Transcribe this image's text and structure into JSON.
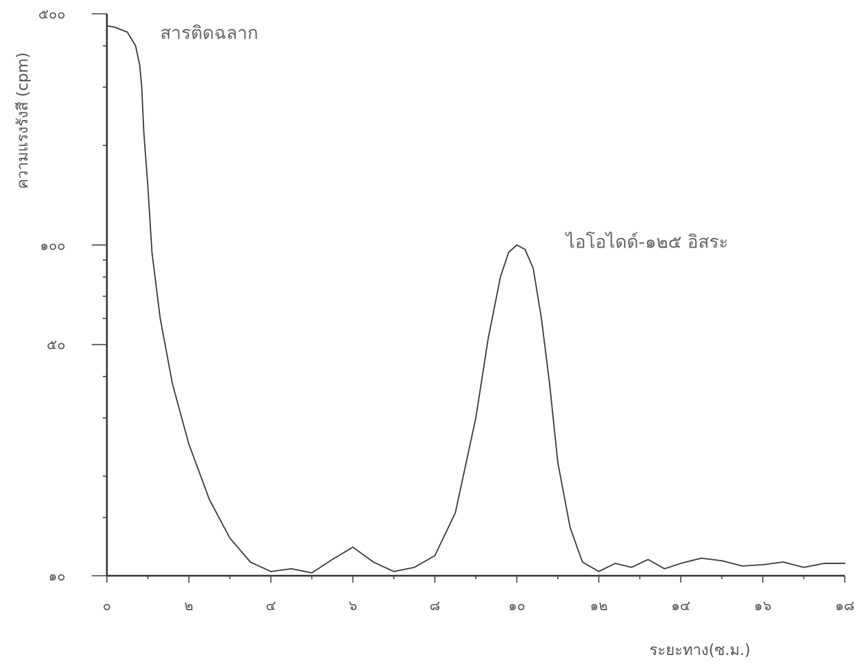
{
  "chart_data": {
    "type": "line",
    "xlabel": "ระยะทาง(ซ.ม.)",
    "ylabel": "ความแรงรังสี (cpm)",
    "xlim": [
      0,
      18
    ],
    "ylim_display_labels": [
      "๑๐",
      "๕๐",
      "๑๐๐",
      "๕๐๐"
    ],
    "x_ticks": [
      {
        "value": 0,
        "label": "๐"
      },
      {
        "value": 2,
        "label": "๒"
      },
      {
        "value": 4,
        "label": "๔"
      },
      {
        "value": 6,
        "label": "๖"
      },
      {
        "value": 8,
        "label": "๘"
      },
      {
        "value": 10,
        "label": "๑๐"
      },
      {
        "value": 12,
        "label": "๑๒"
      },
      {
        "value": 14,
        "label": "๑๔"
      },
      {
        "value": 16,
        "label": "๑๖"
      },
      {
        "value": 18,
        "label": "๑๘"
      }
    ],
    "y_scale": "log",
    "y_ticks": [
      {
        "value": 10,
        "label": "๑๐"
      },
      {
        "value": 50,
        "label": "๕๐"
      },
      {
        "value": 100,
        "label": "๑๐๐"
      },
      {
        "value": 500,
        "label": "๕๐๐"
      }
    ],
    "series": [
      {
        "x": [
          0,
          0.2,
          0.5,
          0.7,
          0.8,
          0.85,
          0.9,
          1.0,
          1.1,
          1.3,
          1.6,
          2.0,
          2.5,
          3.0,
          3.5,
          4.0,
          4.5,
          5.0,
          5.5,
          6.0,
          6.5,
          7.0,
          7.5,
          8.0,
          8.5,
          9.0,
          9.3,
          9.6,
          9.8,
          10.0,
          10.2,
          10.4,
          10.6,
          10.8,
          11.0,
          11.3,
          11.6,
          12.0,
          12.4,
          12.8,
          13.2,
          13.6,
          14.0,
          14.5,
          15.0,
          15.5,
          16.0,
          16.5,
          17.0,
          17.5,
          18.0
        ],
        "y": [
          460,
          455,
          440,
          400,
          350,
          300,
          220,
          150,
          95,
          60,
          38,
          25,
          17,
          13,
          11,
          10.3,
          10.5,
          10.2,
          11.2,
          12.2,
          11.0,
          10.3,
          10.6,
          11.5,
          15.5,
          30,
          52,
          80,
          95,
          100,
          97,
          85,
          60,
          38,
          22,
          14,
          11,
          10.3,
          10.9,
          10.6,
          11.2,
          10.5,
          10.9,
          11.3,
          11.1,
          10.7,
          10.8,
          11.0,
          10.6,
          10.9,
          10.9
        ]
      }
    ],
    "annotations": [
      {
        "text": "สารติดฉลาก",
        "x": 1.3,
        "y": 420
      },
      {
        "text": "ไอโอไดด์-๑๒๕ อิสระ",
        "x": 11.2,
        "y": 98
      }
    ],
    "grid": false,
    "legend": "none"
  }
}
